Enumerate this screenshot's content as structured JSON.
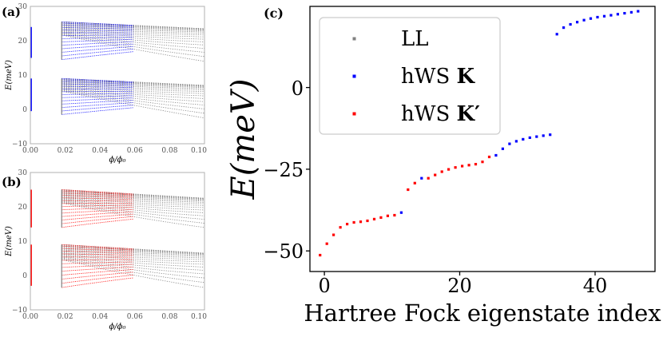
{
  "chart_data": [
    {
      "panel": "a",
      "type": "scatter",
      "label": "(a)",
      "xlabel": "ϕ/ϕ₀",
      "ylabel": "E(meV)",
      "xlim": [
        0.0,
        0.1
      ],
      "ylim": [
        -10,
        30
      ],
      "x_ticks": [
        "0.00",
        "0.02",
        "0.04",
        "0.06",
        "0.08",
        "0.10"
      ],
      "y_ticks": [
        "−10",
        "0",
        "10",
        "20",
        "30"
      ],
      "x_tick_values": [
        0.0,
        0.02,
        0.04,
        0.06,
        0.08,
        0.1
      ],
      "y_tick_values": [
        -10,
        0,
        10,
        20,
        30
      ],
      "fan_flux_range": [
        0.018,
        0.1
      ],
      "hws_color": "#0000ff",
      "ll_color": "#808080",
      "bands": [
        {
          "name": "lower",
          "top": 9.0,
          "bottom_at_start": -1.5,
          "bottom_at_end": -2.5,
          "top_drift": -2.0
        },
        {
          "name": "upper",
          "top": 25.5,
          "bottom_at_start": 14.5,
          "bottom_at_end": 14.0,
          "top_drift": -2.0
        }
      ],
      "zero_flux_lines": [
        [
          -0.5,
          9.0
        ],
        [
          15.0,
          24.0
        ]
      ]
    },
    {
      "panel": "b",
      "type": "scatter",
      "label": "(b)",
      "xlabel": "ϕ/ϕ₀",
      "ylabel": "E(meV)",
      "xlim": [
        0.0,
        0.1
      ],
      "ylim": [
        -10,
        30
      ],
      "x_ticks": [
        "0.00",
        "0.02",
        "0.04",
        "0.06",
        "0.08",
        "0.10"
      ],
      "y_ticks": [
        "−10",
        "0",
        "10",
        "20",
        "30"
      ],
      "x_tick_values": [
        0.0,
        0.02,
        0.04,
        0.06,
        0.08,
        0.1
      ],
      "y_tick_values": [
        -10,
        0,
        10,
        20,
        30
      ],
      "fan_flux_range": [
        0.018,
        0.1
      ],
      "hws_color": "#ff0000",
      "ll_color": "#808080",
      "bands": [
        {
          "name": "lower",
          "top": 9.0,
          "bottom_at_start": -3.5,
          "bottom_at_end": -3.5,
          "top_drift": -2.5
        },
        {
          "name": "upper",
          "top": 25.0,
          "bottom_at_start": 14.0,
          "bottom_at_end": 14.0,
          "top_drift": -2.5
        }
      ],
      "zero_flux_lines": [
        [
          -3.0,
          9.0
        ],
        [
          14.0,
          25.0
        ]
      ]
    },
    {
      "panel": "c",
      "type": "scatter",
      "label": "(c)",
      "xlabel": "Hartree Fock eigenstate index",
      "ylabel": "E(meV)",
      "xlim": [
        -1.5,
        49.5
      ],
      "ylim": [
        -57,
        24
      ],
      "x_ticks": [
        "0",
        "20",
        "40"
      ],
      "y_ticks": [
        "0",
        "−25",
        "−50"
      ],
      "x_tick_values": [
        0,
        20,
        40
      ],
      "y_tick_values": [
        0,
        -25,
        -50
      ],
      "legend": {
        "position": "top-left",
        "entries": [
          {
            "label": "LL",
            "color": "#808080"
          },
          {
            "label": "hWS",
            "bold": "K",
            "color": "#0000ff"
          },
          {
            "label": "hWS",
            "bold": "K′",
            "color": "#ff0000"
          }
        ]
      },
      "series": [
        {
          "name": "hWS K′",
          "color": "#ff0000",
          "points": [
            [
              0,
              -52.0
            ],
            [
              1,
              -48.5
            ],
            [
              2,
              -45.8
            ],
            [
              3,
              -43.5
            ],
            [
              4,
              -42.5
            ],
            [
              5,
              -42.0
            ],
            [
              6,
              -41.8
            ],
            [
              7,
              -41.5
            ],
            [
              8,
              -41.0
            ],
            [
              9,
              -40.5
            ],
            [
              10,
              -40.0
            ],
            [
              11,
              -39.8
            ],
            [
              13,
              -32.0
            ],
            [
              14,
              -30.0
            ],
            [
              16,
              -28.5
            ],
            [
              17,
              -27.5
            ],
            [
              18,
              -26.5
            ],
            [
              19,
              -25.8
            ],
            [
              20,
              -25.2
            ],
            [
              21,
              -24.8
            ],
            [
              22,
              -24.5
            ],
            [
              23,
              -24.2
            ],
            [
              24,
              -23.5
            ],
            [
              25,
              -22.0
            ]
          ]
        },
        {
          "name": "hWS K",
          "color": "#0000ff",
          "points": [
            [
              12,
              -39.0
            ],
            [
              15,
              -28.5
            ],
            [
              26,
              -21.5
            ],
            [
              27,
              -19.5
            ],
            [
              28,
              -18.0
            ],
            [
              29,
              -17.2
            ],
            [
              30,
              -16.6
            ],
            [
              31,
              -16.1
            ],
            [
              32,
              -15.8
            ],
            [
              33,
              -15.5
            ],
            [
              34,
              -15.2
            ],
            [
              35,
              15.5
            ],
            [
              36,
              17.5
            ],
            [
              37,
              18.5
            ],
            [
              38,
              19.2
            ],
            [
              39,
              19.8
            ],
            [
              40,
              20.3
            ],
            [
              41,
              20.7
            ],
            [
              42,
              21.0
            ],
            [
              43,
              21.3
            ],
            [
              44,
              21.6
            ],
            [
              45,
              21.9
            ],
            [
              46,
              22.2
            ],
            [
              47,
              22.5
            ]
          ]
        }
      ]
    }
  ]
}
